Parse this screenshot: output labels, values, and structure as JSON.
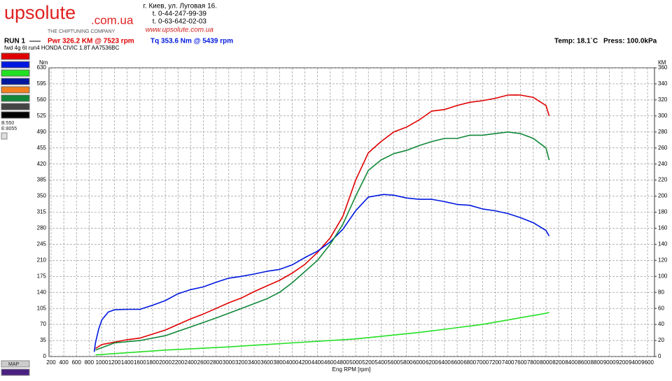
{
  "header": {
    "logo": "upsolute",
    "logo_domain": ".com.ua",
    "tagline": "THE CHIPTUNING COMPANY",
    "address": [
      "г. Киев, ул. Луговая 16.",
      "t. 0-44-247-99-39",
      "t. 0-63-642-02-03",
      "www.upsolute.com.ua"
    ],
    "run": "RUN 1",
    "power": "Pwr  326.2 KM @ 7523 rpm",
    "torque": "Tq 353.6 Nm @ 5439 rpm",
    "temp": "Temp: 18.1`C",
    "press": "Press: 100.0kPa",
    "description": "fwd 4g 6t run4 HONDA CIVIC 1.8T AA7536BC"
  },
  "panel": {
    "begin": "B:550",
    "end": "E:8055",
    "map": "MAP"
  },
  "chart_data": {
    "type": "line",
    "xlabel": "Eng RPM [rpm]",
    "ylabel": "Nm",
    "y2label": "КМ",
    "grid": true,
    "xlim": [
      167,
      9710
    ],
    "ylim": [
      0,
      630
    ],
    "y2lim": [
      0,
      360
    ],
    "xticks": [
      200,
      400,
      600,
      800,
      1000,
      1200,
      1400,
      1600,
      1800,
      2000,
      2200,
      2400,
      2600,
      2800,
      3000,
      3200,
      3400,
      3600,
      3800,
      4000,
      4200,
      4400,
      4600,
      4800,
      5000,
      5200,
      5400,
      5600,
      5800,
      6000,
      6200,
      6400,
      6600,
      6800,
      7000,
      7200,
      7400,
      7600,
      7800,
      8000,
      8200,
      8400,
      8600,
      8800,
      9000,
      9200,
      9400,
      9600
    ],
    "yticks": [
      0,
      35,
      70,
      105,
      140,
      175,
      210,
      245,
      280,
      315,
      350,
      385,
      420,
      455,
      490,
      525,
      560,
      595,
      630
    ],
    "y2ticks": [
      0,
      20,
      40,
      60,
      80,
      100,
      120,
      140,
      160,
      180,
      200,
      220,
      240,
      260,
      280,
      300,
      320,
      340,
      360
    ],
    "series": [
      {
        "color": "#e00000",
        "axis": "y2",
        "x": [
          900,
          1000,
          1200,
          1400,
          1600,
          1800,
          2000,
          2200,
          2400,
          2600,
          2800,
          3000,
          3200,
          3400,
          3600,
          3800,
          4000,
          4200,
          4400,
          4600,
          4800,
          5000,
          5200,
          5400,
          5600,
          5800,
          6000,
          6200,
          6400,
          6600,
          6800,
          7000,
          7200,
          7400,
          7523,
          7600,
          7800,
          8000,
          8050
        ],
        "values": [
          10,
          15,
          18,
          21,
          23,
          28,
          33,
          40,
          47,
          53,
          60,
          67,
          73,
          81,
          88,
          95,
          104,
          115,
          130,
          148,
          175,
          220,
          254,
          268,
          280,
          286,
          295,
          306,
          308,
          313,
          317,
          319,
          322,
          326,
          326.2,
          326,
          323,
          313,
          300
        ]
      },
      {
        "color": "#0018e0",
        "x": [
          880,
          900,
          950,
          1000,
          1100,
          1200,
          1400,
          1600,
          1800,
          2000,
          2200,
          2400,
          2600,
          2800,
          3000,
          3200,
          3400,
          3600,
          3800,
          4000,
          4200,
          4400,
          4600,
          4800,
          5000,
          5200,
          5439,
          5600,
          5800,
          6000,
          6200,
          6400,
          6600,
          6800,
          7000,
          7200,
          7400,
          7600,
          7800,
          8000,
          8050
        ],
        "values": [
          10,
          30,
          60,
          80,
          97,
          102,
          103,
          103,
          112,
          122,
          137,
          146,
          152,
          162,
          171,
          175,
          180,
          186,
          190,
          200,
          216,
          230,
          250,
          278,
          318,
          348,
          353.6,
          352,
          346,
          343,
          343,
          338,
          332,
          330,
          322,
          318,
          312,
          303,
          292,
          275,
          263
        ]
      },
      {
        "color": "#22e022",
        "axis": "y2",
        "x": [
          900,
          2000,
          3000,
          4000,
          5000,
          6000,
          7000,
          8000,
          8050
        ],
        "values": [
          2,
          8,
          12,
          17,
          22,
          30,
          40,
          54,
          55
        ]
      },
      {
        "color": "#108838",
        "axis": "y2",
        "x": [
          900,
          1200,
          1600,
          2000,
          2400,
          2800,
          3200,
          3600,
          3800,
          4000,
          4200,
          4400,
          4600,
          4800,
          5000,
          5200,
          5400,
          5600,
          5800,
          6000,
          6200,
          6400,
          6600,
          6800,
          7000,
          7200,
          7400,
          7600,
          7800,
          8000,
          8050
        ],
        "values": [
          8,
          17,
          20,
          26,
          37,
          48,
          60,
          72,
          80,
          92,
          106,
          120,
          140,
          165,
          200,
          232,
          245,
          253,
          257,
          263,
          268,
          272,
          272,
          276,
          276,
          278,
          280,
          278,
          272,
          260,
          245
        ]
      }
    ]
  }
}
